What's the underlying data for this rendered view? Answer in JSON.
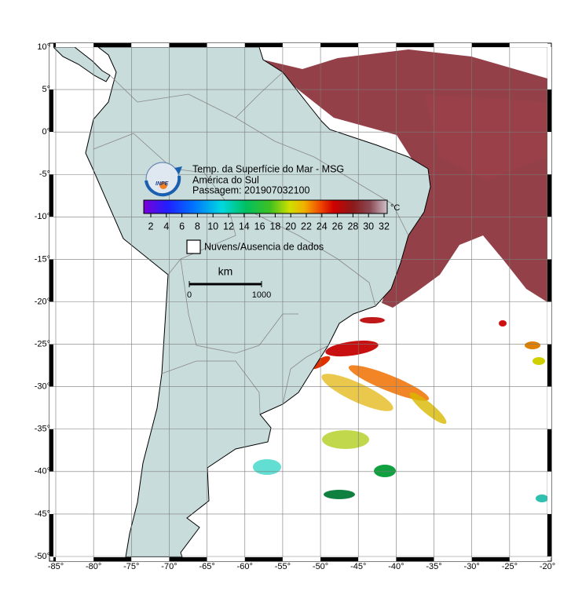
{
  "title": "Temp. da Superfície do Mar - MSG",
  "region": "América do Sul",
  "pass": "Passagem: 201907032100",
  "logo": "INPE",
  "colorbar": {
    "unit": "°C",
    "ticks": [
      2,
      4,
      6,
      8,
      10,
      12,
      14,
      16,
      18,
      20,
      22,
      24,
      26,
      28,
      30,
      32
    ]
  },
  "legend": "Nuvens/Ausencia de dados",
  "scale_bar": {
    "unit": "km",
    "start": "0",
    "end": "1000"
  },
  "map": {
    "lon_ticks": [
      {
        "value": -85,
        "label": "-85°"
      },
      {
        "value": -80,
        "label": "-80°"
      },
      {
        "value": -75,
        "label": "-75°"
      },
      {
        "value": -70,
        "label": "-70°"
      },
      {
        "value": -65,
        "label": "-65°"
      },
      {
        "value": -60,
        "label": "-60°"
      },
      {
        "value": -55,
        "label": "-55°"
      },
      {
        "value": -50,
        "label": "-50°"
      },
      {
        "value": -45,
        "label": "-45°"
      },
      {
        "value": -40,
        "label": "-40°"
      },
      {
        "value": -35,
        "label": "-35°"
      },
      {
        "value": -30,
        "label": "-30°"
      },
      {
        "value": -25,
        "label": "-25°"
      },
      {
        "value": -20,
        "label": "-20°"
      }
    ],
    "lat_ticks": [
      {
        "value": 10,
        "label": "10°"
      },
      {
        "value": 5,
        "label": "5°"
      },
      {
        "value": 0,
        "label": "0°"
      },
      {
        "value": -5,
        "label": "-5°"
      },
      {
        "value": -10,
        "label": "-10°"
      },
      {
        "value": -15,
        "label": "-15°"
      },
      {
        "value": -20,
        "label": "-20°"
      },
      {
        "value": -25,
        "label": "-25°"
      },
      {
        "value": -30,
        "label": "-30°"
      },
      {
        "value": -35,
        "label": "-35°"
      },
      {
        "value": -40,
        "label": "-40°"
      },
      {
        "value": -45,
        "label": "-45°"
      },
      {
        "value": -50,
        "label": "-50°"
      }
    ]
  }
}
